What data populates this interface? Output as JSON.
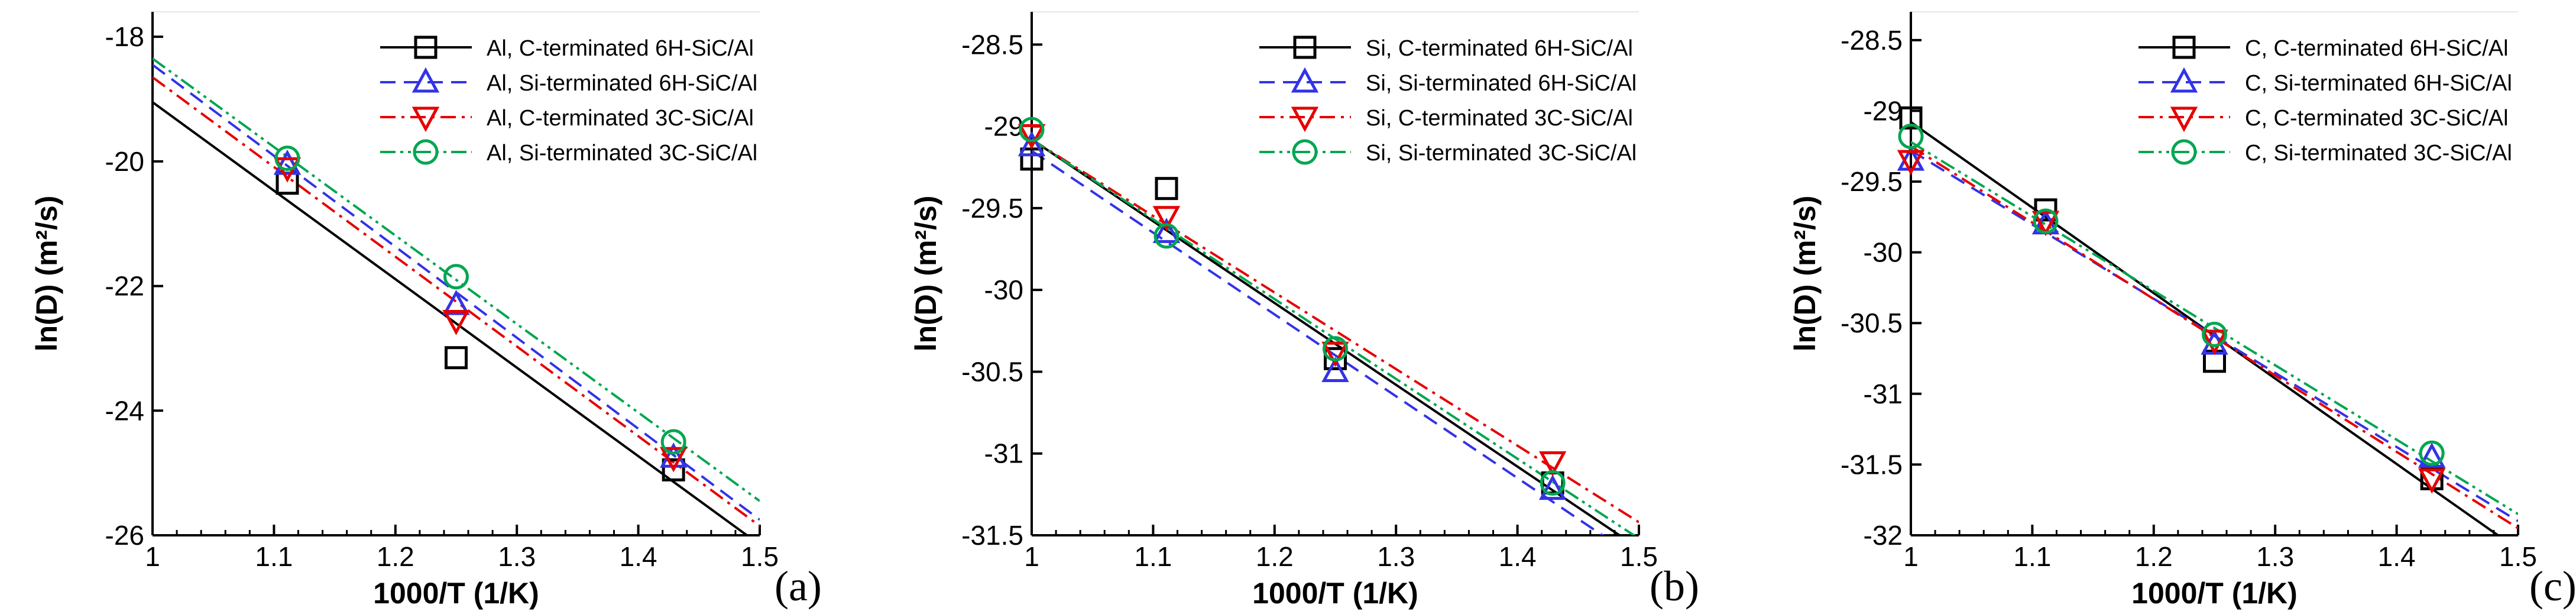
{
  "colors": {
    "black": "#000000",
    "blue": "#3333e6",
    "red": "#e60000",
    "green": "#00a650",
    "grid": "#e6e6e6"
  },
  "chart_data": [
    {
      "type": "line",
      "panel_label": "(a)",
      "xlabel": "1000/T (1/K)",
      "ylabel": "ln(D) (m²/s)",
      "xlim": [
        1,
        1.5
      ],
      "ylim": [
        -26,
        -17.6
      ],
      "xticks": [
        1,
        1.1,
        1.2,
        1.3,
        1.4,
        1.5
      ],
      "xtick_labels": [
        "1",
        "1.1",
        "1.2",
        "1.3",
        "1.4",
        "1.5"
      ],
      "yticks": [
        -26,
        -24,
        -22,
        -20,
        -18
      ],
      "ytick_labels": [
        "-26",
        "-24",
        "-22",
        "-20",
        "-18"
      ],
      "series": [
        {
          "name": "Al, C-terminated 6H-SiC/Al",
          "color": "#000000",
          "dash": "solid",
          "marker": "square",
          "points": [
            [
              1.111,
              -20.35
            ],
            [
              1.25,
              -23.15
            ],
            [
              1.429,
              -24.95
            ]
          ],
          "fit": [
            [
              1,
              -19.05
            ],
            [
              1.5,
              -26.15
            ]
          ]
        },
        {
          "name": "Al, Si-terminated 6H-SiC/Al",
          "color": "#3333e6",
          "dash": "dashed",
          "marker": "triangle-up",
          "points": [
            [
              1.111,
              -20.05
            ],
            [
              1.25,
              -22.3
            ],
            [
              1.429,
              -24.75
            ]
          ],
          "fit": [
            [
              1,
              -18.45
            ],
            [
              1.5,
              -25.75
            ]
          ]
        },
        {
          "name": "Al, C-terminated 3C-SiC/Al",
          "color": "#e60000",
          "dash": "dashdot",
          "marker": "triangle-down",
          "points": [
            [
              1.111,
              -20.1
            ],
            [
              1.25,
              -22.55
            ],
            [
              1.429,
              -24.75
            ]
          ],
          "fit": [
            [
              1,
              -18.65
            ],
            [
              1.5,
              -25.85
            ]
          ]
        },
        {
          "name": "Al, Si-terminated 3C-SiC/Al",
          "color": "#00a650",
          "dash": "dashdotdot",
          "marker": "circle",
          "points": [
            [
              1.111,
              -19.95
            ],
            [
              1.25,
              -21.85
            ],
            [
              1.429,
              -24.5
            ]
          ],
          "fit": [
            [
              1,
              -18.35
            ],
            [
              1.5,
              -25.45
            ]
          ]
        }
      ]
    },
    {
      "type": "line",
      "panel_label": "(b)",
      "xlabel": "1000/T (1/K)",
      "ylabel": "ln(D) (m²/s)",
      "xlim": [
        1,
        1.5
      ],
      "ylim": [
        -31.5,
        -28.3
      ],
      "xticks": [
        1,
        1.1,
        1.2,
        1.3,
        1.4,
        1.5
      ],
      "xtick_labels": [
        "1",
        "1.1",
        "1.2",
        "1.3",
        "1.4",
        "1.5"
      ],
      "yticks": [
        -31.5,
        -31,
        -30.5,
        -30,
        -29.5,
        -29,
        -28.5
      ],
      "ytick_labels": [
        "-31.5",
        "-31",
        "-30.5",
        "-30",
        "-29.5",
        "-29",
        "-28.5"
      ],
      "series": [
        {
          "name": "Si, C-terminated 6H-SiC/Al",
          "color": "#000000",
          "dash": "solid",
          "marker": "square",
          "points": [
            [
              1,
              -29.2
            ],
            [
              1.111,
              -29.38
            ],
            [
              1.25,
              -30.42
            ],
            [
              1.429,
              -31.18
            ]
          ],
          "fit": [
            [
              1,
              -29.08
            ],
            [
              1.5,
              -31.58
            ]
          ]
        },
        {
          "name": "Si, Si-terminated 6H-SiC/Al",
          "color": "#3333e6",
          "dash": "dashed",
          "marker": "triangle-up",
          "points": [
            [
              1,
              -29.12
            ],
            [
              1.111,
              -29.65
            ],
            [
              1.25,
              -30.5
            ],
            [
              1.429,
              -31.22
            ]
          ],
          "fit": [
            [
              1,
              -29.15
            ],
            [
              1.5,
              -31.65
            ]
          ]
        },
        {
          "name": "Si, C-terminated 3C-SiC/Al",
          "color": "#e60000",
          "dash": "dashdot",
          "marker": "triangle-down",
          "points": [
            [
              1,
              -29.05
            ],
            [
              1.111,
              -29.55
            ],
            [
              1.25,
              -30.38
            ],
            [
              1.429,
              -31.05
            ]
          ],
          "fit": [
            [
              1,
              -29.08
            ],
            [
              1.5,
              -31.42
            ]
          ]
        },
        {
          "name": "Si, Si-terminated 3C-SiC/Al",
          "color": "#00a650",
          "dash": "dashdotdot",
          "marker": "circle",
          "points": [
            [
              1,
              -29.02
            ],
            [
              1.111,
              -29.67
            ],
            [
              1.25,
              -30.36
            ],
            [
              1.429,
              -31.18
            ]
          ],
          "fit": [
            [
              1,
              -29.08
            ],
            [
              1.5,
              -31.52
            ]
          ]
        }
      ]
    },
    {
      "type": "line",
      "panel_label": "(c)",
      "xlabel": "1000/T (1/K)",
      "ylabel": "ln(D) (m²/s)",
      "xlim": [
        1,
        1.5
      ],
      "ylim": [
        -32,
        -28.3
      ],
      "xticks": [
        1,
        1.1,
        1.2,
        1.3,
        1.4,
        1.5
      ],
      "xtick_labels": [
        "1",
        "1.1",
        "1.2",
        "1.3",
        "1.4",
        "1.5"
      ],
      "yticks": [
        -32,
        -31.5,
        -31,
        -30.5,
        -30,
        -29.5,
        -29,
        -28.5
      ],
      "ytick_labels": [
        "-32",
        "-31.5",
        "-31",
        "-30.5",
        "-30",
        "-29.5",
        "-29",
        "-28.5"
      ],
      "series": [
        {
          "name": "C, C-terminated 6H-SiC/Al",
          "color": "#000000",
          "dash": "solid",
          "marker": "square",
          "points": [
            [
              1,
              -29.05
            ],
            [
              1.111,
              -29.7
            ],
            [
              1.25,
              -30.77
            ],
            [
              1.429,
              -31.6
            ]
          ],
          "fit": [
            [
              1,
              -29.08
            ],
            [
              1.5,
              -32.1
            ]
          ]
        },
        {
          "name": "C, Si-terminated 6H-SiC/Al",
          "color": "#3333e6",
          "dash": "dashed",
          "marker": "triangle-up",
          "points": [
            [
              1,
              -29.35
            ],
            [
              1.111,
              -29.8
            ],
            [
              1.25,
              -30.65
            ],
            [
              1.429,
              -31.45
            ]
          ],
          "fit": [
            [
              1,
              -29.28
            ],
            [
              1.5,
              -31.9
            ]
          ]
        },
        {
          "name": "C, C-terminated 3C-SiC/Al",
          "color": "#e60000",
          "dash": "dashdot",
          "marker": "triangle-down",
          "points": [
            [
              1,
              -29.35
            ],
            [
              1.111,
              -29.78
            ],
            [
              1.25,
              -30.62
            ],
            [
              1.429,
              -31.6
            ]
          ],
          "fit": [
            [
              1,
              -29.25
            ],
            [
              1.5,
              -31.95
            ]
          ]
        },
        {
          "name": "C, Si-terminated 3C-SiC/Al",
          "color": "#00a650",
          "dash": "dashdotdot",
          "marker": "circle",
          "points": [
            [
              1,
              -29.18
            ],
            [
              1.111,
              -29.78
            ],
            [
              1.25,
              -30.58
            ],
            [
              1.429,
              -31.42
            ]
          ],
          "fit": [
            [
              1,
              -29.22
            ],
            [
              1.5,
              -31.85
            ]
          ]
        }
      ]
    }
  ]
}
